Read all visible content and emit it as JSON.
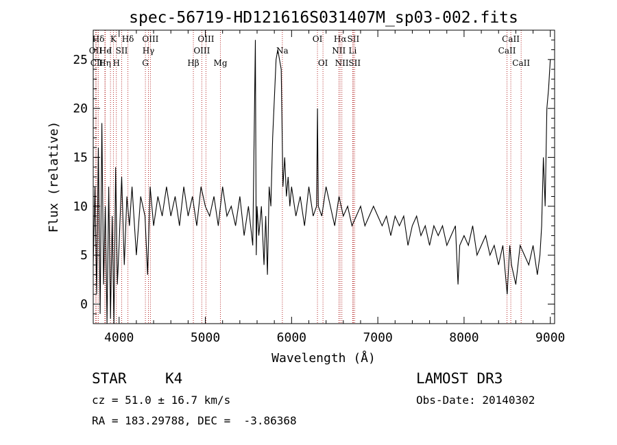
{
  "chart_data": {
    "type": "line",
    "title": "spec-56719-HD121616S031407M_sp03-002.fits",
    "xlabel": "Wavelength (Å)",
    "ylabel": "Flux (relative)",
    "xlim": [
      3700,
      9050
    ],
    "ylim": [
      -2,
      28
    ],
    "xticks": [
      4000,
      5000,
      6000,
      7000,
      8000,
      9000
    ],
    "yticks": [
      0,
      5,
      10,
      15,
      20,
      25
    ],
    "line_color": "#000000",
    "marker_color": "#b22222",
    "series": [
      {
        "name": "flux",
        "x": [
          3700,
          3720,
          3740,
          3760,
          3780,
          3800,
          3820,
          3840,
          3860,
          3880,
          3900,
          3920,
          3940,
          3960,
          3980,
          4000,
          4030,
          4060,
          4090,
          4120,
          4150,
          4200,
          4250,
          4300,
          4330,
          4360,
          4400,
          4450,
          4500,
          4550,
          4600,
          4650,
          4700,
          4750,
          4800,
          4850,
          4900,
          4950,
          5000,
          5050,
          5100,
          5150,
          5200,
          5250,
          5300,
          5350,
          5400,
          5450,
          5500,
          5550,
          5580,
          5590,
          5600,
          5620,
          5650,
          5680,
          5700,
          5720,
          5740,
          5760,
          5780,
          5800,
          5820,
          5840,
          5860,
          5880,
          5900,
          5920,
          5940,
          5960,
          5980,
          6000,
          6050,
          6100,
          6150,
          6200,
          6250,
          6290,
          6300,
          6310,
          6350,
          6400,
          6450,
          6500,
          6550,
          6600,
          6650,
          6700,
          6750,
          6800,
          6850,
          6900,
          6950,
          7000,
          7050,
          7100,
          7150,
          7200,
          7250,
          7300,
          7350,
          7400,
          7450,
          7500,
          7550,
          7600,
          7650,
          7700,
          7750,
          7800,
          7850,
          7900,
          7930,
          7950,
          8000,
          8050,
          8100,
          8150,
          8200,
          8250,
          8300,
          8350,
          8400,
          8450,
          8500,
          8530,
          8550,
          8600,
          8650,
          8700,
          8750,
          8800,
          8850,
          8880,
          8900,
          8920,
          8940,
          8960,
          8980,
          9000
        ],
        "y": [
          4,
          12,
          1,
          16,
          -1,
          18.5,
          2,
          10,
          -2,
          12,
          -1.5,
          9,
          -2,
          14,
          2,
          6,
          13,
          4,
          11,
          8,
          12,
          5,
          11,
          9,
          3,
          12,
          8,
          11,
          9,
          12,
          9,
          11,
          8,
          12,
          9,
          11,
          8,
          12,
          10,
          9,
          11,
          8,
          12,
          9,
          10,
          8,
          11,
          7,
          10,
          6,
          27,
          5,
          10,
          7,
          10,
          4,
          9,
          3,
          12,
          10,
          17,
          21,
          25,
          26,
          25,
          24,
          12,
          15,
          11,
          13,
          10,
          12,
          9,
          11,
          8,
          12,
          9,
          10,
          20,
          10,
          9,
          12,
          10,
          8,
          11,
          9,
          10,
          8,
          9,
          10,
          8,
          9,
          10,
          9,
          8,
          9,
          7,
          9,
          8,
          9,
          6,
          8,
          9,
          7,
          8,
          6,
          8,
          7,
          8,
          6,
          7,
          8,
          2,
          6,
          7,
          6,
          8,
          5,
          6,
          7,
          5,
          6,
          4,
          6,
          1,
          6,
          4,
          2,
          6,
          5,
          4,
          6,
          3,
          5,
          8,
          15,
          10,
          20,
          22,
          25
        ]
      }
    ],
    "line_markers": [
      {
        "label": "Hδ",
        "x": 3760,
        "row": 1
      },
      {
        "label": "OII",
        "x": 3727,
        "row": 2
      },
      {
        "label": "CII",
        "x": 3740,
        "row": 3
      },
      {
        "label": "He",
        "x": 3840,
        "row": 2
      },
      {
        "label": "Hη",
        "x": 3835,
        "row": 3
      },
      {
        "label": "K",
        "x": 3934,
        "row": 1
      },
      {
        "label": "I",
        "x": 3900,
        "row": 2
      },
      {
        "label": "H",
        "x": 3968,
        "row": 3
      },
      {
        "label": "SII",
        "x": 4030,
        "row": 2
      },
      {
        "label": "Hδ",
        "x": 4102,
        "row": 1
      },
      {
        "label": "OIII",
        "x": 4363,
        "row": 1
      },
      {
        "label": "Hγ",
        "x": 4340,
        "row": 2
      },
      {
        "label": "G",
        "x": 4305,
        "row": 3
      },
      {
        "label": "Hβ",
        "x": 4861,
        "row": 3
      },
      {
        "label": "OIII",
        "x": 5007,
        "row": 1
      },
      {
        "label": "OIII",
        "x": 4959,
        "row": 2
      },
      {
        "label": "Mg",
        "x": 5175,
        "row": 3
      },
      {
        "label": "Na",
        "x": 5893,
        "row": 2
      },
      {
        "label": "OI",
        "x": 6300,
        "row": 1
      },
      {
        "label": "OI",
        "x": 6364,
        "row": 3
      },
      {
        "label": "Hα",
        "x": 6563,
        "row": 1
      },
      {
        "label": "NII",
        "x": 6548,
        "row": 2
      },
      {
        "label": "NII",
        "x": 6583,
        "row": 3
      },
      {
        "label": "SII",
        "x": 6716,
        "row": 1
      },
      {
        "label": "Li",
        "x": 6708,
        "row": 2
      },
      {
        "label": "SII",
        "x": 6731,
        "row": 3
      },
      {
        "label": "CaII",
        "x": 8542,
        "row": 1
      },
      {
        "label": "CaII",
        "x": 8498,
        "row": 2
      },
      {
        "label": "CaII",
        "x": 8662,
        "row": 3
      }
    ]
  },
  "info": {
    "object_class": "STAR",
    "subclass": "K4",
    "survey": "LAMOST DR3",
    "redshift_line": "cz = 51.0 ± 16.7 km/s",
    "obs_date": "Obs-Date: 20140302",
    "coords": "RA = 183.29788, DEC =  -3.86368"
  }
}
